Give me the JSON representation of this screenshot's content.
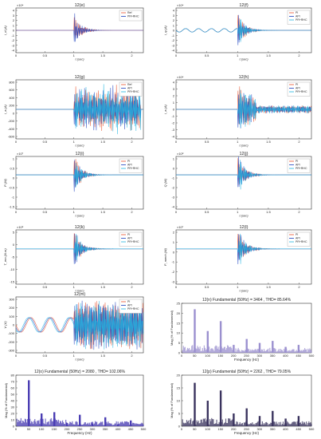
{
  "figure": {
    "panels": [
      {
        "title": "12(e)",
        "ylabel": "i_d (A)",
        "xlabel": "t (sec)",
        "exp": "×10⁴",
        "yticks": [
          "4",
          "3",
          "2",
          "1",
          "0",
          "-1",
          "-2",
          "-3",
          "-4"
        ],
        "xticks": [
          "0",
          "0.5",
          "1",
          "1.5",
          "2"
        ],
        "legend": [
          "Ref",
          "PR+RHC"
        ],
        "legend_pos": "top-right"
      },
      {
        "title": "12(f)",
        "ylabel": "i_q (A)",
        "xlabel": "t (sec)",
        "exp": "×10⁴",
        "yticks": [
          "4",
          "3",
          "2",
          "1",
          "0",
          "-1",
          "-2",
          "-3",
          "-4"
        ],
        "xticks": [
          "0",
          "0.5",
          "1",
          "1.5",
          "2"
        ],
        "legend": [
          "PI",
          "API",
          "PR+RHC"
        ],
        "legend_pos": "top-right"
      },
      {
        "title": "12(g)",
        "ylabel": "i_a (A)",
        "xlabel": "t (sec)",
        "exp": "",
        "yticks": [
          "800",
          "600",
          "400",
          "200",
          "0",
          "-200",
          "-400",
          "-600"
        ],
        "xticks": [
          "0",
          "0.5",
          "1",
          "1.5",
          "2"
        ],
        "legend": [
          "Ref",
          "API",
          "PR+RHC"
        ],
        "legend_pos": "top-right"
      },
      {
        "title": "12(h)",
        "ylabel": "i_a (A)",
        "xlabel": "t (sec)",
        "exp": "×10⁴",
        "yticks": [
          "4",
          "3",
          "2",
          "1",
          "0",
          "-1",
          "-2",
          "-3",
          "-4"
        ],
        "xticks": [
          "0",
          "0.5",
          "1",
          "1.5",
          "2"
        ],
        "legend": [
          "PI",
          "API",
          "PR+RHC"
        ],
        "legend_pos": "top-right"
      },
      {
        "title": "12(i)",
        "ylabel": "P (W)",
        "xlabel": "t (sec)",
        "exp": "×10⁷",
        "yticks": [
          "1",
          "0.5",
          "0",
          "-0.5",
          "-1",
          "-1.5"
        ],
        "xticks": [
          "0",
          "0.5",
          "1",
          "1.5",
          "2"
        ],
        "legend": [
          "PI",
          "API",
          "PR+RHC"
        ],
        "legend_pos": "top-right"
      },
      {
        "title": "12(j)",
        "ylabel": "Q (W)",
        "xlabel": "t (sec)",
        "exp": "×10⁸",
        "yticks": [
          "1",
          "0",
          "-1",
          "-2",
          "-3",
          "-4"
        ],
        "xticks": [
          "0",
          "0.5",
          "1",
          "1.5",
          "2"
        ],
        "legend": [
          "PI",
          "API",
          "PR+RHC"
        ],
        "legend_pos": "top-right"
      },
      {
        "title": "12(k)",
        "ylabel": "T_em (N.m)",
        "xlabel": "t (sec)",
        "exp": "×10⁵",
        "yticks": [
          "5",
          "0",
          "-5",
          "-10",
          "-15"
        ],
        "xticks": [
          "0",
          "0.5",
          "1",
          "1.5",
          "2"
        ],
        "legend": [
          "PI",
          "API",
          "PR+RHC"
        ],
        "legend_pos": "top-right"
      },
      {
        "title": "12(l)",
        "ylabel": "P_mech (W)",
        "xlabel": "t (sec)",
        "exp": "×10⁷",
        "yticks": [
          "2",
          "1",
          "0",
          "-1",
          "-2",
          "-3"
        ],
        "xticks": [
          "0",
          "0.5",
          "1",
          "1.5",
          "2"
        ],
        "legend": [
          "PI",
          "API",
          "PR+RHC"
        ],
        "legend_pos": "top-right"
      },
      {
        "title": "12(m)",
        "ylabel": "V (V)",
        "xlabel": "t (sec)",
        "exp": "",
        "yticks": [
          "300",
          "200",
          "100",
          "0",
          "-100",
          "-200",
          "-300"
        ],
        "xticks": [
          "0",
          "0.5",
          "1",
          "1.5",
          "2"
        ],
        "legend": [
          "PI",
          "API",
          "PR+RHC"
        ],
        "legend_pos": "top-right"
      }
    ],
    "spectra": [
      {
        "title": "12(n) Fundamental (50Hz) = 3464 , THD= 85.64%",
        "ylabel": "Mag (% of Fundamental)",
        "xlabel": "Frequency (Hz)",
        "yticks": [
          "25",
          "20",
          "15",
          "10",
          "5",
          "0"
        ],
        "ylim": [
          0,
          25
        ],
        "xticks": [
          "0",
          "50",
          "100",
          "150",
          "200",
          "250",
          "300",
          "350",
          "400",
          "450",
          "500"
        ]
      },
      {
        "title": "12(o)  Fundamental (50Hz) = 2080 , THD= 102.06%",
        "ylabel": "Mag (% of Fundamental)",
        "xlabel": "Frequency (Hz)",
        "yticks": [
          "80",
          "70",
          "60",
          "50",
          "40",
          "30",
          "20",
          "10",
          "0"
        ],
        "ylim": [
          0,
          80
        ],
        "xticks": [
          "0",
          "50",
          "100",
          "150",
          "200",
          "250",
          "300",
          "350",
          "400",
          "450",
          "500"
        ]
      },
      {
        "title": "12(p)  Fundamental (50Hz) = 2262 , THD= 79.05%",
        "ylabel": "Mag (% of Fundamental)",
        "xlabel": "Frequency (Hz)",
        "yticks": [
          "20",
          "15",
          "10",
          "5",
          "0"
        ],
        "ylim": [
          0,
          20
        ],
        "xticks": [
          "0",
          "50",
          "100",
          "150",
          "200",
          "250",
          "300",
          "350",
          "400",
          "450",
          "500"
        ]
      }
    ]
  },
  "colors": {
    "series1": "#e8502a",
    "series2": "#1a3fbf",
    "series3": "#1fb4e0",
    "spec_n": "#9b90cf",
    "spec_o": "#4a3db3",
    "spec_p": "#3a335e"
  },
  "chart_data": [
    {
      "type": "bar",
      "title": "12(n) Fundamental (50Hz) = 3464 , THD= 85.64%",
      "xlabel": "Frequency (Hz)",
      "ylabel": "Mag (% of Fundamental)",
      "xlim": [
        0,
        500
      ],
      "ylim": [
        0,
        25
      ],
      "x": [
        50,
        100,
        150,
        200,
        250,
        300,
        350,
        400,
        450
      ],
      "values": [
        22,
        11,
        16,
        4,
        7,
        5,
        6,
        3,
        4
      ]
    },
    {
      "type": "bar",
      "title": "12(o)  Fundamental (50Hz) = 2080 , THD= 102.06%",
      "xlabel": "Frequency (Hz)",
      "ylabel": "Mag (% of Fundamental)",
      "xlim": [
        0,
        500
      ],
      "ylim": [
        0,
        80
      ],
      "x": [
        50,
        100,
        150,
        200,
        250,
        300,
        350,
        400,
        450
      ],
      "values": [
        72,
        20,
        22,
        5,
        18,
        4,
        14,
        3,
        9
      ]
    },
    {
      "type": "bar",
      "title": "12(p)  Fundamental (50Hz) = 2262 , THD= 79.05%",
      "xlabel": "Frequency (Hz)",
      "ylabel": "Mag (% of Fundamental)",
      "xlim": [
        0,
        500
      ],
      "ylim": [
        0,
        20
      ],
      "x": [
        50,
        100,
        150,
        200,
        250,
        300,
        350,
        400,
        450
      ],
      "values": [
        17,
        10,
        14,
        5,
        7,
        4,
        6,
        3,
        4
      ]
    }
  ]
}
